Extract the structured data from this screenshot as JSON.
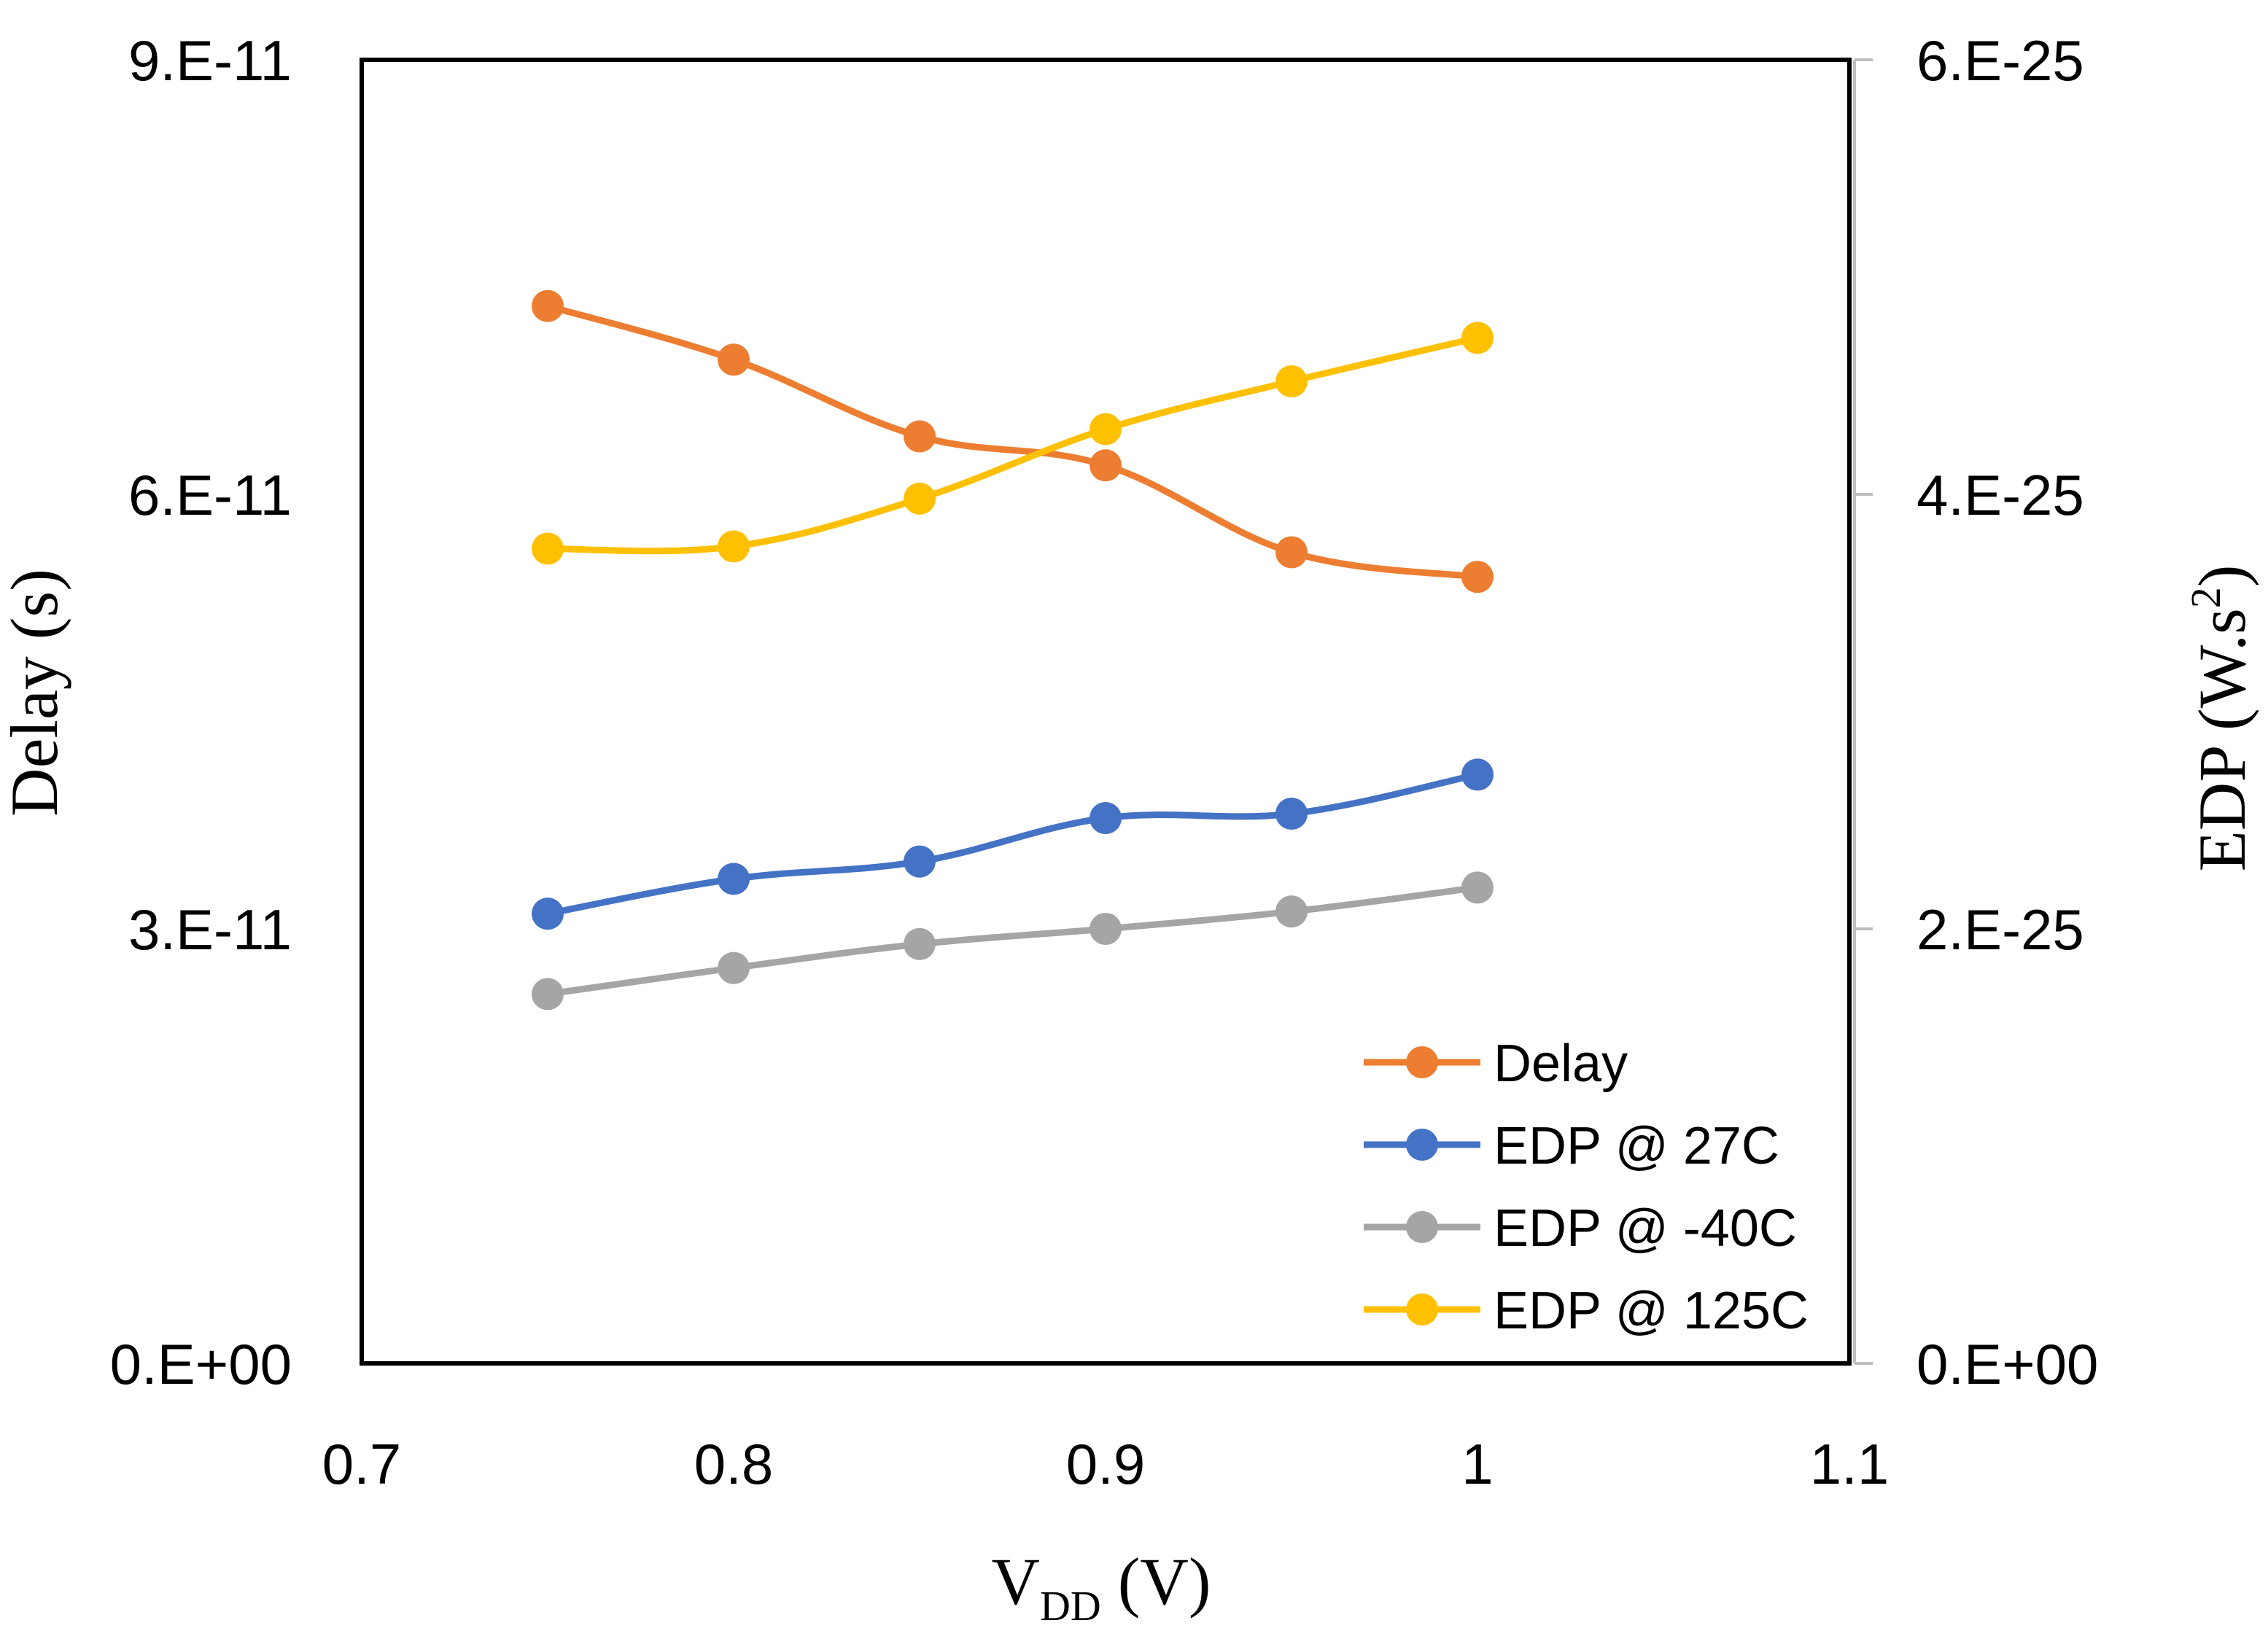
{
  "chart_data": {
    "type": "line",
    "title": "",
    "x": [
      0.75,
      0.8,
      0.85,
      0.9,
      0.95,
      1.0
    ],
    "xlabel": {
      "main": "V",
      "sub": "DD",
      "rest": " (V)"
    },
    "ylabel_left": "Delay (s)",
    "ylabel_right": {
      "main": "EDP (W.s",
      "sup": "2",
      "rest": ")"
    },
    "xlim": [
      0.7,
      1.1
    ],
    "ylim_left": [
      0,
      9e-11
    ],
    "ylim_right": [
      0,
      6e-25
    ],
    "x_ticks": [
      "0.7",
      "0.8",
      "0.9",
      "1",
      "1.1"
    ],
    "y_ticks_left": [
      "0.E+00",
      "3.E-11",
      "6.E-11",
      "9.E-11"
    ],
    "y_ticks_right": [
      "0.E+00",
      "2.E-25",
      "4.E-25",
      "6.E-25"
    ],
    "grid": false,
    "legend_position": "bottom-right",
    "series": [
      {
        "name": "Delay",
        "axis": "left",
        "color": "#ED7D31",
        "values": [
          7.3e-11,
          6.93e-11,
          6.4e-11,
          6.2e-11,
          5.6e-11,
          5.43e-11
        ]
      },
      {
        "name": "EDP @ 27C",
        "axis": "right",
        "color": "#4472C4",
        "values": [
          2.07e-25,
          2.23e-25,
          2.31e-25,
          2.51e-25,
          2.53e-25,
          2.71e-25
        ]
      },
      {
        "name": "EDP @ -40C",
        "axis": "right",
        "color": "#A5A5A5",
        "values": [
          1.7e-25,
          1.82e-25,
          1.93e-25,
          2e-25,
          2.08e-25,
          2.19e-25
        ]
      },
      {
        "name": "EDP @ 125C",
        "axis": "right",
        "color": "#FFC000",
        "values": [
          3.75e-25,
          3.76e-25,
          3.98e-25,
          4.3e-25,
          4.52e-25,
          4.72e-25
        ]
      }
    ]
  }
}
